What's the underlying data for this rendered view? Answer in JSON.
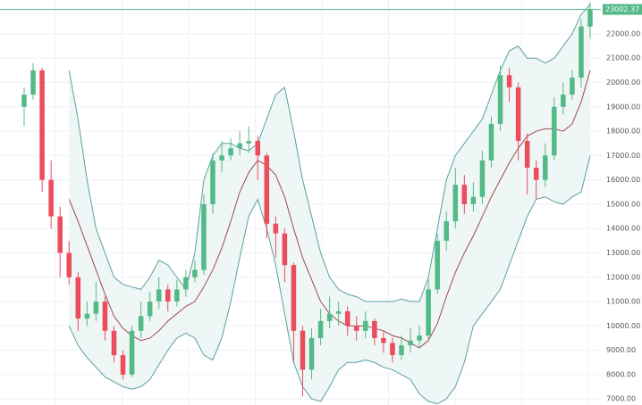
{
  "chart_data": {
    "type": "candlestick",
    "open": [
      19000,
      19500,
      20500,
      16000,
      14500,
      13000,
      12000,
      10300,
      10500,
      11000,
      9800,
      8800,
      8000,
      9800,
      10400,
      11000,
      11500,
      11000,
      11500,
      12000,
      12300,
      15000,
      16800,
      17000,
      17300,
      17500,
      17600,
      17000,
      14200,
      13800,
      12500,
      9800,
      8200,
      9500,
      10200,
      10500,
      10600,
      10000,
      9800,
      10200,
      9500,
      9300,
      8800,
      9200,
      9400,
      9600,
      11500,
      13500,
      14300,
      15800,
      15000,
      15300,
      16800,
      18300,
      20300,
      19800,
      17600,
      16500,
      16000,
      17000,
      19000,
      19500,
      20200,
      22300
    ],
    "high": [
      19800,
      20800,
      20600,
      16800,
      14900,
      13500,
      12200,
      11000,
      11800,
      11200,
      10000,
      9000,
      10000,
      11000,
      11400,
      12000,
      11700,
      11900,
      12300,
      12700,
      15400,
      17100,
      17600,
      17700,
      18000,
      18200,
      17800,
      17100,
      14500,
      14000,
      12600,
      10000,
      9900,
      10700,
      11200,
      11000,
      10800,
      10400,
      10600,
      10300,
      9800,
      9500,
      9600,
      9900,
      10000,
      11900,
      13800,
      14700,
      16500,
      16200,
      15900,
      17200,
      18600,
      20700,
      20600,
      20000,
      17900,
      16800,
      17500,
      19400,
      20000,
      20500,
      22600,
      23300
    ],
    "low": [
      18200,
      19300,
      15500,
      14000,
      12000,
      11700,
      9800,
      10000,
      10200,
      9400,
      8500,
      7800,
      7900,
      9500,
      10200,
      10700,
      10600,
      10800,
      11200,
      11800,
      12100,
      14600,
      16300,
      16800,
      17000,
      17100,
      16000,
      13600,
      12800,
      11800,
      8500,
      7100,
      7800,
      9200,
      9900,
      10000,
      9600,
      9400,
      9500,
      9200,
      8900,
      8500,
      8600,
      8900,
      9100,
      9400,
      11300,
      13100,
      14000,
      14600,
      14700,
      15000,
      16500,
      18000,
      19200,
      16800,
      15400,
      15200,
      15700,
      16800,
      18700,
      19300,
      19800,
      21800
    ],
    "close": [
      19500,
      20500,
      16000,
      14500,
      13000,
      12000,
      10300,
      10500,
      11000,
      9800,
      8800,
      8000,
      9800,
      10400,
      11000,
      11500,
      11000,
      11500,
      12000,
      12300,
      15000,
      16800,
      17000,
      17300,
      17500,
      17600,
      17000,
      14200,
      13800,
      12500,
      9800,
      8200,
      9500,
      10200,
      10500,
      10600,
      10000,
      9800,
      10200,
      9500,
      9300,
      8800,
      9200,
      9400,
      9600,
      11500,
      13500,
      14300,
      15800,
      15000,
      15300,
      16800,
      18300,
      20300,
      19800,
      17600,
      16500,
      16000,
      17000,
      19000,
      19500,
      20200,
      22300,
      23000
    ],
    "up_color": "#53b987",
    "down_color": "#eb4d5c",
    "bands": {
      "upper": [
        null,
        null,
        null,
        null,
        null,
        20500,
        18500,
        16000,
        14000,
        13000,
        12000,
        11700,
        11600,
        11500,
        12000,
        12700,
        12500,
        12000,
        11500,
        13000,
        16000,
        17000,
        17500,
        17500,
        17300,
        17200,
        17500,
        18500,
        19500,
        19800,
        18000,
        16000,
        14500,
        13000,
        12000,
        11500,
        11300,
        11200,
        11000,
        11000,
        11000,
        11000,
        11100,
        11000,
        11000,
        12000,
        14000,
        16000,
        17000,
        17500,
        18000,
        18500,
        19500,
        20500,
        21300,
        21500,
        21000,
        21000,
        20800,
        21000,
        21500,
        22000,
        22800,
        23200
      ],
      "middle": [
        null,
        null,
        null,
        null,
        null,
        15200,
        14300,
        13300,
        12300,
        11300,
        10400,
        9900,
        9600,
        9400,
        9500,
        9800,
        10200,
        10500,
        10800,
        11000,
        11600,
        12300,
        13200,
        14300,
        15500,
        16300,
        16800,
        16600,
        16200,
        15300,
        14000,
        12800,
        11900,
        11000,
        10500,
        10200,
        10000,
        10000,
        10000,
        9900,
        9800,
        9600,
        9500,
        9300,
        9100,
        9400,
        10100,
        11200,
        12200,
        13000,
        13700,
        14500,
        15300,
        16000,
        16700,
        17300,
        17800,
        18000,
        18100,
        18100,
        18000,
        18300,
        19200,
        20500
      ],
      "lower": [
        null,
        null,
        null,
        null,
        null,
        10000,
        9200,
        8700,
        8300,
        7900,
        7700,
        7500,
        7400,
        7500,
        7800,
        8400,
        9000,
        9500,
        9700,
        9500,
        8800,
        8600,
        9500,
        11000,
        12800,
        14500,
        15200,
        14000,
        12500,
        10500,
        8500,
        7500,
        7000,
        6900,
        7500,
        8200,
        8500,
        8500,
        8600,
        8500,
        8300,
        8200,
        8000,
        7800,
        7200,
        6900,
        6800,
        7000,
        7500,
        8500,
        10000,
        10500,
        11000,
        11500,
        12500,
        13500,
        14500,
        15200,
        15300,
        15100,
        15000,
        15300,
        15500,
        17000
      ],
      "band_color": "#5a9fa5",
      "middle_color": "#a04a4a",
      "fill_color": "#eef6f6"
    },
    "last_price": 23002.37,
    "last_price_color": "#53b987",
    "ylim": [
      6750,
      23390
    ],
    "yticks": [
      {
        "value": 7000,
        "label": "7000.00"
      },
      {
        "value": 8000,
        "label": "8000.00"
      },
      {
        "value": 9000,
        "label": "9000.00"
      },
      {
        "value": 10000,
        "label": "10000.00"
      },
      {
        "value": 11000,
        "label": "11000.00"
      },
      {
        "value": 12000,
        "label": "12000.00"
      },
      {
        "value": 13000,
        "label": "13000.00"
      },
      {
        "value": 14000,
        "label": "14000.00"
      },
      {
        "value": 15000,
        "label": "15000.00"
      },
      {
        "value": 16000,
        "label": "16000.00"
      },
      {
        "value": 17000,
        "label": "17000.00"
      },
      {
        "value": 18000,
        "label": "18000.00"
      },
      {
        "value": 19000,
        "label": "19000.00"
      },
      {
        "value": 20000,
        "label": "20000.00"
      },
      {
        "value": 21000,
        "label": "21000.00"
      },
      {
        "value": 22000,
        "label": "22000.00"
      }
    ],
    "grid": true
  }
}
